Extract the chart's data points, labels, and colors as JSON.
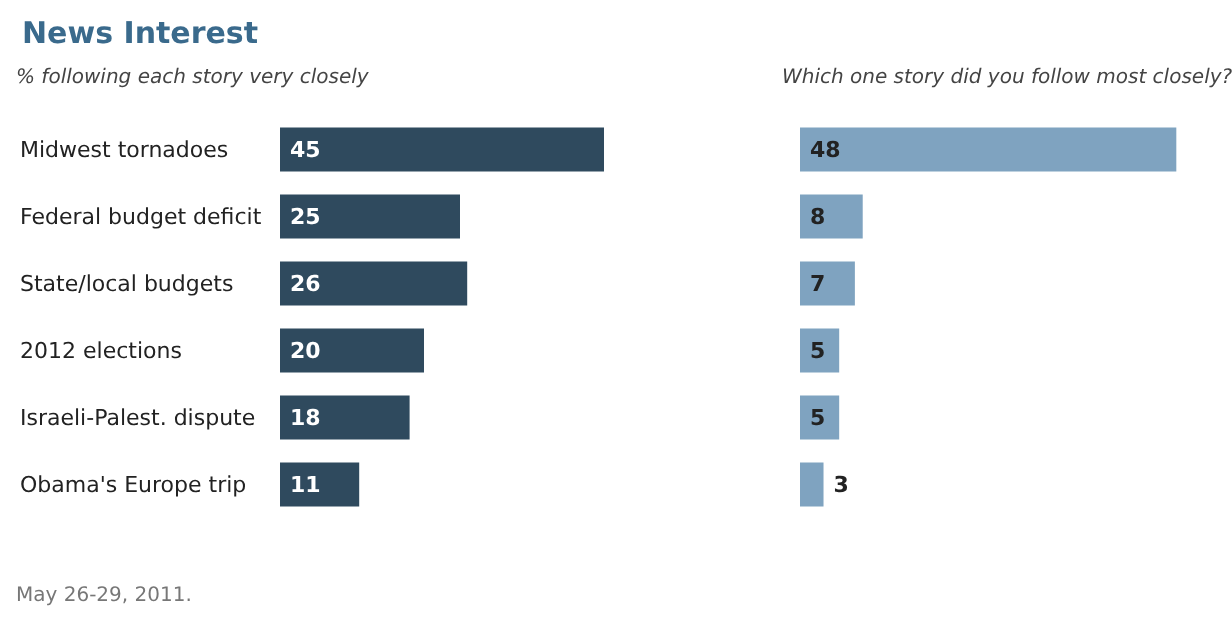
{
  "chart_data": [
    {
      "type": "bar",
      "title": "News Interest",
      "subtitle": "% following each story very closely",
      "orientation": "horizontal",
      "categories": [
        "Midwest tornadoes",
        "Federal budget deficit",
        "State/local budgets",
        "2012 elections",
        "Israeli-Palest. dispute",
        "Obama's Europe trip"
      ],
      "values": [
        45,
        25,
        26,
        20,
        18,
        11
      ],
      "color": "#2f4a5e",
      "data_labels": true,
      "tick_labels": "y",
      "annotations": [
        "May 26-29, 2011."
      ]
    },
    {
      "type": "bar",
      "subtitle": "Which one story did you follow most closely?",
      "orientation": "horizontal",
      "categories": [
        null,
        null,
        null,
        null,
        null,
        null
      ],
      "values": [
        48,
        8,
        7,
        5,
        5,
        3
      ],
      "color": "#7fa3c0",
      "data_labels": true,
      "tick_labels": false
    }
  ]
}
